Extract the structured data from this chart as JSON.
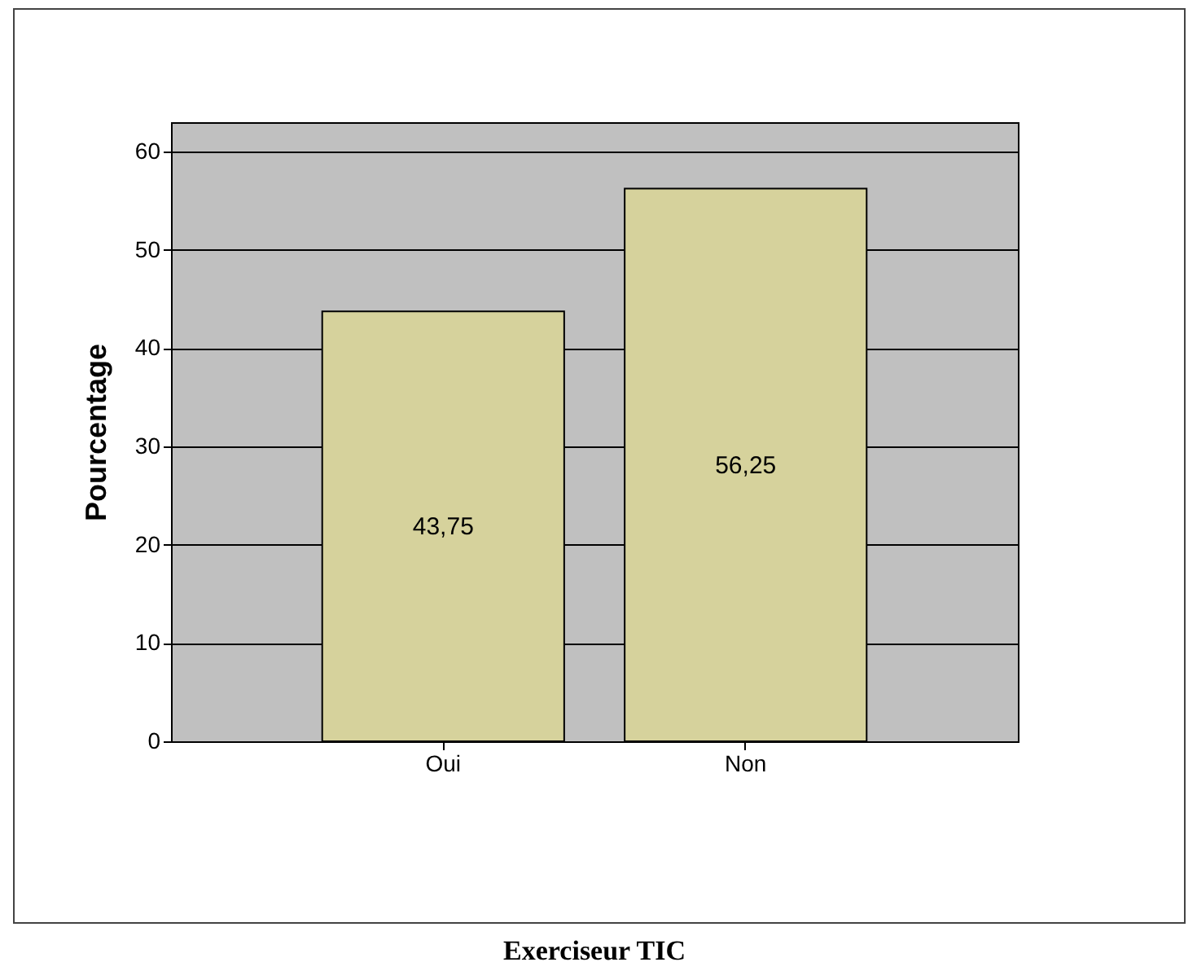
{
  "chart_data": {
    "type": "bar",
    "title": "Exerciseur TIC",
    "ylabel": "Pourcentage",
    "categories": [
      "Oui",
      "Non"
    ],
    "values": [
      43.75,
      56.25
    ],
    "value_labels": [
      "43,75",
      "56,25"
    ],
    "color": "#d6d29c",
    "ylim": [
      0,
      63
    ],
    "yticks": [
      0,
      10,
      20,
      30,
      40,
      50,
      60
    ],
    "grid": "y"
  }
}
